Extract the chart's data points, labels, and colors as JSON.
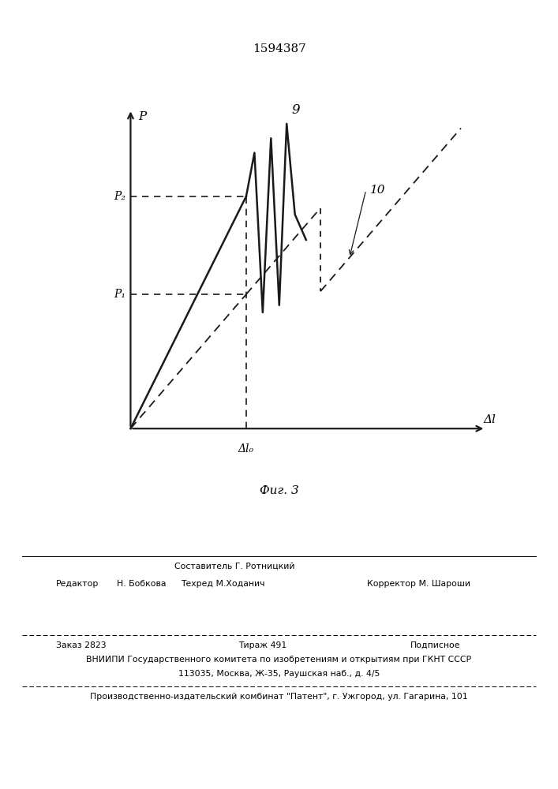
{
  "patent_number": "1594387",
  "fig_label": "Фиг. 3",
  "line_color": "#1a1a1a",
  "p1_label": "P₁",
  "p2_label": "P₂",
  "p_axis_label": "P",
  "x_axis_label": "Δl",
  "x_tick_label": "Δl₀",
  "label_9": "9",
  "label_10": "10",
  "footer_sestavitel": "Составитель Г. Ротницкий",
  "footer_redaktor_label": "Редактор",
  "footer_redaktor_name": "Н. Бобкова",
  "footer_tehred": "Техред М.Ходанич",
  "footer_korrektor": "Корректор М. Шароши",
  "footer_zakaz": "Заказ 2823",
  "footer_tirazh": "Тираж 491",
  "footer_podpisnoe": "Подписное",
  "footer_vniipI": "ВНИИПИ Государственного комитета по изобретениям и открытиям при ГКНТ СССР",
  "footer_addr": "113035, Москва, Ж-35, Раушская наб., д. 4/5",
  "footer_kombinat": "Производственно-издательский комбинат \"Патент\", г. Ужгород, ул. Гагарина, 101"
}
